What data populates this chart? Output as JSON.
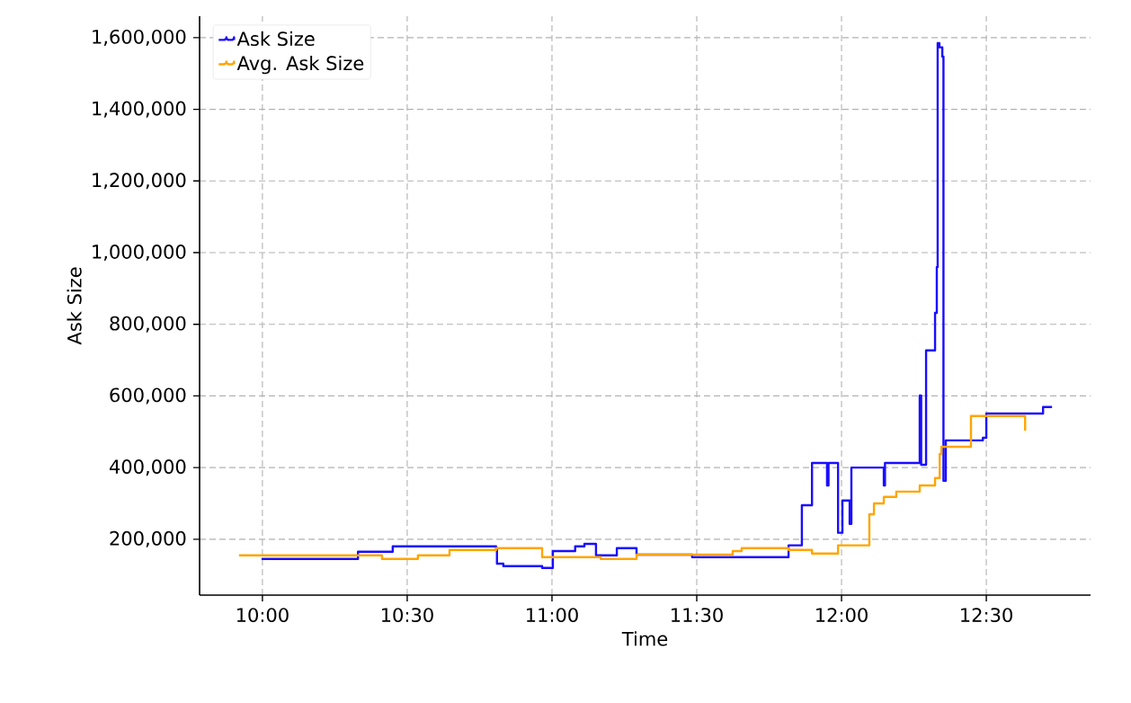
{
  "chart_data": {
    "type": "step",
    "xlabel": "Time",
    "ylabel": "Ask Size",
    "xlim": [
      9.783,
      12.86
    ],
    "ylim": [
      44000,
      1660000
    ],
    "xticks": [
      {
        "value": 10,
        "label": "10:00"
      },
      {
        "value": 10.5,
        "label": "10:30"
      },
      {
        "value": 11,
        "label": "11:00"
      },
      {
        "value": 11.5,
        "label": "11:30"
      },
      {
        "value": 12,
        "label": "12:00"
      },
      {
        "value": 12.5,
        "label": "12:30"
      }
    ],
    "yticks": [
      {
        "value": 200000,
        "label": "200,000"
      },
      {
        "value": 400000,
        "label": "400,000"
      },
      {
        "value": 600000,
        "label": "600,000"
      },
      {
        "value": 800000,
        "label": "800,000"
      },
      {
        "value": 1000000,
        "label": "1,000,000"
      },
      {
        "value": 1200000,
        "label": "1,200,000"
      },
      {
        "value": 1400000,
        "label": "1,400,000"
      },
      {
        "value": 1600000,
        "label": "1,600,000"
      }
    ],
    "grid": true,
    "legend": "top left",
    "line_style": "solid",
    "marker": "none",
    "series": [
      {
        "name": "Ask Size",
        "color": "#1a0dff",
        "x": [
          9.997,
          10.326,
          10.33,
          10.45,
          10.807,
          10.81,
          10.832,
          10.966,
          11.003,
          11.08,
          11.112,
          11.152,
          11.224,
          11.292,
          11.484,
          11.795,
          11.817,
          11.863,
          11.898,
          11.95,
          11.955,
          11.988,
          12.003,
          12.028,
          12.034,
          12.146,
          12.15,
          12.27,
          12.275,
          12.292,
          12.323,
          12.329,
          12.332,
          12.338,
          12.348,
          12.352,
          12.36,
          12.488,
          12.5,
          12.696,
          12.727
        ],
        "values": [
          145000,
          145000,
          165000,
          180000,
          175000,
          132000,
          125000,
          120000,
          167000,
          180000,
          187000,
          155000,
          175000,
          157000,
          150000,
          150000,
          183000,
          295000,
          413000,
          350000,
          413000,
          218000,
          308000,
          243000,
          400000,
          350000,
          413000,
          601000,
          408000,
          727000,
          832000,
          960000,
          1585000,
          1573000,
          1547000,
          363000,
          476000,
          483000,
          551000,
          569000,
          569000
        ]
      },
      {
        "name": "Avg. Ask Size",
        "color": "#ffa500",
        "x": [
          9.919,
          10.413,
          10.537,
          10.646,
          10.807,
          10.966,
          11.168,
          11.292,
          11.624,
          11.655,
          11.817,
          11.898,
          11.988,
          12.096,
          12.112,
          12.146,
          12.189,
          12.27,
          12.323,
          12.339,
          12.345,
          12.447,
          12.634
        ],
        "values": [
          155000,
          145000,
          155000,
          170000,
          175000,
          150000,
          145000,
          157000,
          167000,
          175000,
          170000,
          160000,
          183000,
          270000,
          300000,
          318000,
          333000,
          350000,
          371000,
          438000,
          458000,
          544000,
          503000
        ]
      }
    ]
  }
}
